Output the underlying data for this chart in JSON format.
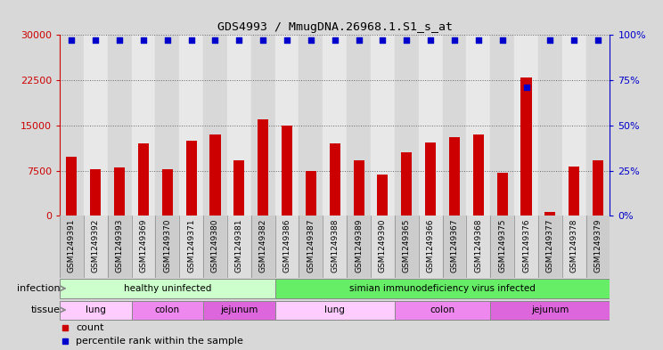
{
  "title": "GDS4993 / MmugDNA.26968.1.S1_s_at",
  "samples": [
    "GSM1249391",
    "GSM1249392",
    "GSM1249393",
    "GSM1249369",
    "GSM1249370",
    "GSM1249371",
    "GSM1249380",
    "GSM1249381",
    "GSM1249382",
    "GSM1249386",
    "GSM1249387",
    "GSM1249388",
    "GSM1249389",
    "GSM1249390",
    "GSM1249365",
    "GSM1249366",
    "GSM1249367",
    "GSM1249368",
    "GSM1249375",
    "GSM1249376",
    "GSM1249377",
    "GSM1249378",
    "GSM1249379"
  ],
  "counts": [
    9800,
    7800,
    8000,
    12000,
    7700,
    12500,
    13500,
    9200,
    16000,
    15000,
    7400,
    12000,
    9200,
    6800,
    10500,
    12200,
    13000,
    13500,
    7200,
    23000,
    700,
    8200,
    9200
  ],
  "percentiles": [
    97,
    97,
    97,
    97,
    97,
    97,
    97,
    97,
    97,
    97,
    97,
    97,
    97,
    97,
    97,
    97,
    97,
    97,
    97,
    71,
    97,
    97,
    97
  ],
  "bar_color": "#cc0000",
  "dot_color": "#0000cc",
  "infection_groups": [
    {
      "label": "healthy uninfected",
      "start": 0,
      "end": 8,
      "color": "#ccffcc"
    },
    {
      "label": "simian immunodeficiency virus infected",
      "start": 9,
      "end": 22,
      "color": "#66ee66"
    }
  ],
  "tissue_groups": [
    {
      "label": "lung",
      "start": 0,
      "end": 2,
      "color": "#ffccff"
    },
    {
      "label": "colon",
      "start": 3,
      "end": 5,
      "color": "#ee88ee"
    },
    {
      "label": "jejunum",
      "start": 6,
      "end": 8,
      "color": "#dd66dd"
    },
    {
      "label": "lung",
      "start": 9,
      "end": 13,
      "color": "#ffccff"
    },
    {
      "label": "colon",
      "start": 14,
      "end": 17,
      "color": "#ee88ee"
    },
    {
      "label": "jejunum",
      "start": 18,
      "end": 22,
      "color": "#dd66dd"
    }
  ],
  "ylim_left": [
    0,
    30000
  ],
  "ylim_right": [
    0,
    100
  ],
  "yticks_left": [
    0,
    7500,
    15000,
    22500,
    30000
  ],
  "yticks_right": [
    0,
    25,
    50,
    75,
    100
  ],
  "bg_color": "#d8d8d8",
  "plot_bg_color": "#ffffff",
  "tick_label_bg": "#cccccc",
  "grid_color": "#666666"
}
